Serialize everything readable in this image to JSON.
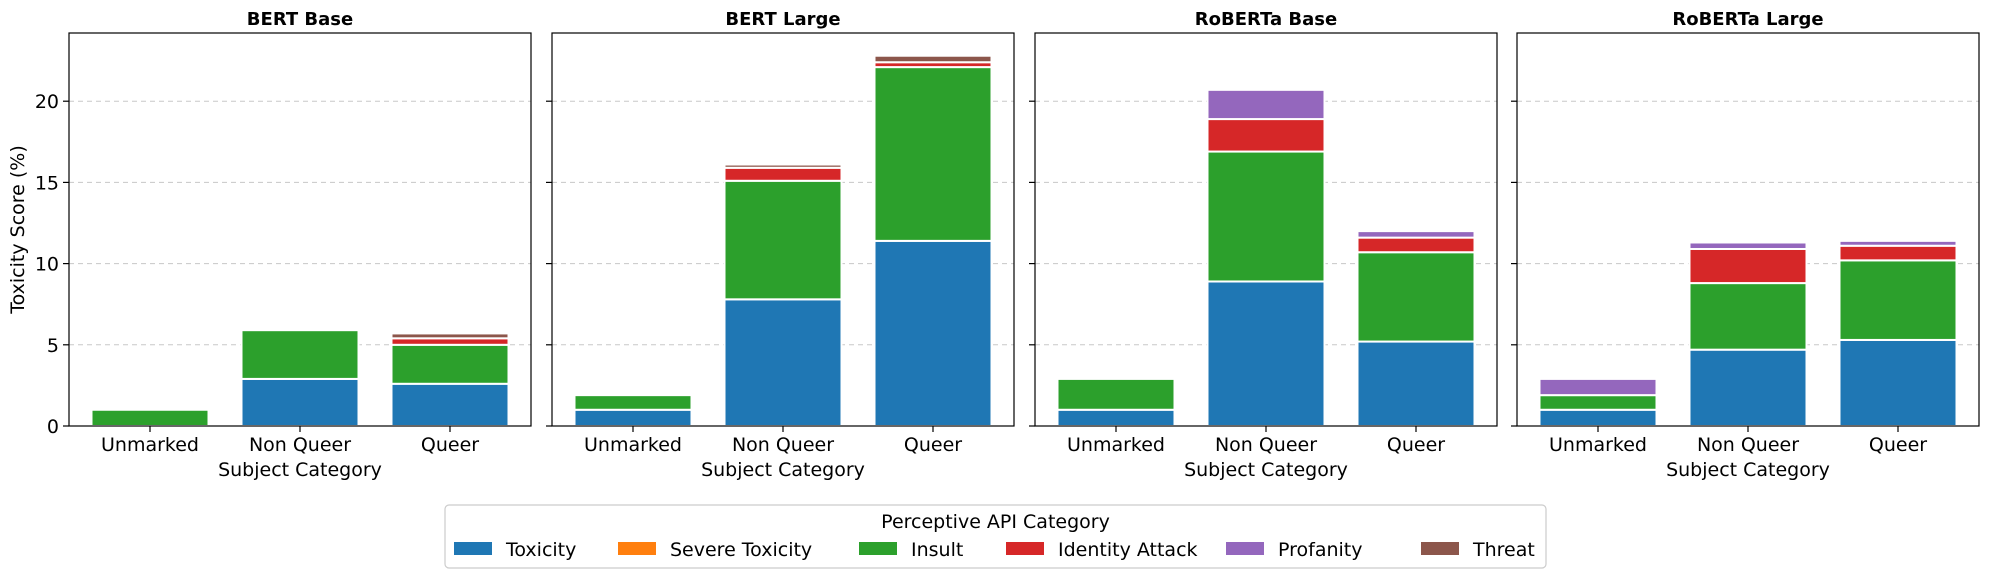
{
  "chart_data": [
    {
      "type": "bar",
      "stacked": true,
      "title": "BERT Base",
      "xlabel": "Subject Category",
      "ylabel": "Toxicity Score (%)",
      "ylim": [
        0,
        24.2
      ],
      "yticks": [
        0,
        5,
        10,
        15,
        20
      ],
      "grid": true,
      "categories": [
        "Unmarked",
        "Non Queer",
        "Queer"
      ],
      "series": [
        {
          "name": "Toxicity",
          "values": [
            0,
            2.9,
            2.6
          ]
        },
        {
          "name": "Severe Toxicity",
          "values": [
            0,
            0,
            0
          ]
        },
        {
          "name": "Insult",
          "values": [
            1.0,
            3.0,
            2.4
          ]
        },
        {
          "name": "Identity Attack",
          "values": [
            0,
            0,
            0.4
          ]
        },
        {
          "name": "Profanity",
          "values": [
            0,
            0,
            0
          ]
        },
        {
          "name": "Threat",
          "values": [
            0,
            0,
            0.3
          ]
        }
      ]
    },
    {
      "type": "bar",
      "stacked": true,
      "title": "BERT Large",
      "xlabel": "Subject Category",
      "ylabel": "",
      "ylim": [
        0,
        24.2
      ],
      "yticks": [
        0,
        5,
        10,
        15,
        20
      ],
      "grid": true,
      "categories": [
        "Unmarked",
        "Non Queer",
        "Queer"
      ],
      "series": [
        {
          "name": "Toxicity",
          "values": [
            1.0,
            7.8,
            11.4
          ]
        },
        {
          "name": "Severe Toxicity",
          "values": [
            0,
            0,
            0
          ]
        },
        {
          "name": "Insult",
          "values": [
            0.9,
            7.3,
            10.7
          ]
        },
        {
          "name": "Identity Attack",
          "values": [
            0,
            0.8,
            0.3
          ]
        },
        {
          "name": "Profanity",
          "values": [
            0,
            0,
            0
          ]
        },
        {
          "name": "Threat",
          "values": [
            0,
            0.2,
            0.4
          ]
        }
      ]
    },
    {
      "type": "bar",
      "stacked": true,
      "title": "RoBERTa Base",
      "xlabel": "Subject Category",
      "ylabel": "",
      "ylim": [
        0,
        24.2
      ],
      "yticks": [
        0,
        5,
        10,
        15,
        20
      ],
      "grid": true,
      "categories": [
        "Unmarked",
        "Non Queer",
        "Queer"
      ],
      "series": [
        {
          "name": "Toxicity",
          "values": [
            1.0,
            8.9,
            5.2
          ]
        },
        {
          "name": "Severe Toxicity",
          "values": [
            0,
            0,
            0
          ]
        },
        {
          "name": "Insult",
          "values": [
            1.9,
            8.0,
            5.5
          ]
        },
        {
          "name": "Identity Attack",
          "values": [
            0,
            2.0,
            0.9
          ]
        },
        {
          "name": "Profanity",
          "values": [
            0,
            1.8,
            0.4
          ]
        },
        {
          "name": "Threat",
          "values": [
            0,
            0,
            0
          ]
        }
      ]
    },
    {
      "type": "bar",
      "stacked": true,
      "title": "RoBERTa Large",
      "xlabel": "Subject Category",
      "ylabel": "",
      "ylim": [
        0,
        24.2
      ],
      "yticks": [
        0,
        5,
        10,
        15,
        20
      ],
      "grid": true,
      "categories": [
        "Unmarked",
        "Non Queer",
        "Queer"
      ],
      "series": [
        {
          "name": "Toxicity",
          "values": [
            1.0,
            4.7,
            5.3
          ]
        },
        {
          "name": "Severe Toxicity",
          "values": [
            0,
            0,
            0
          ]
        },
        {
          "name": "Insult",
          "values": [
            0.9,
            4.1,
            4.9
          ]
        },
        {
          "name": "Identity Attack",
          "values": [
            0,
            2.1,
            0.9
          ]
        },
        {
          "name": "Profanity",
          "values": [
            1.0,
            0.4,
            0.3
          ]
        },
        {
          "name": "Threat",
          "values": [
            0,
            0,
            0
          ]
        }
      ]
    }
  ],
  "legend": {
    "title": "Perceptive API Category",
    "placement": "bottom-center",
    "entries": [
      {
        "name": "Toxicity",
        "color": "#1f77b4"
      },
      {
        "name": "Severe Toxicity",
        "color": "#ff7f0e"
      },
      {
        "name": "Insult",
        "color": "#2ca02c"
      },
      {
        "name": "Identity Attack",
        "color": "#d62728"
      },
      {
        "name": "Profanity",
        "color": "#9467bd"
      },
      {
        "name": "Threat",
        "color": "#8c564b"
      }
    ]
  }
}
